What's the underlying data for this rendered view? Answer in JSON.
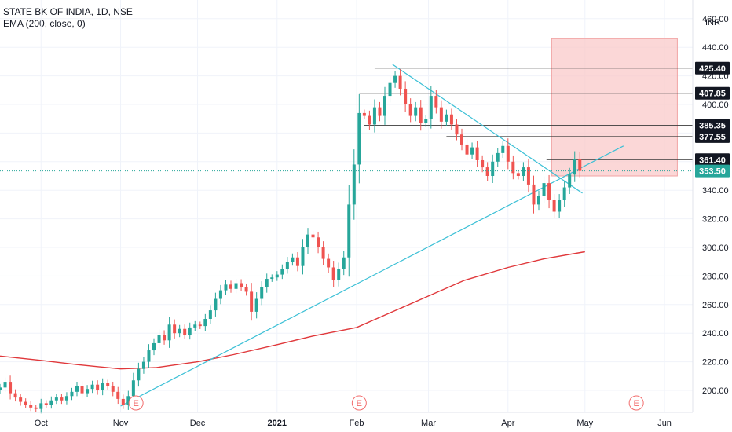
{
  "header": {
    "title": "STATE BK OF INDIA, 1D, NSE",
    "indicator": "EMA (200, close, 0)"
  },
  "currency": "INR",
  "colors": {
    "up": "#26a69a",
    "down": "#ef5350",
    "ema": "#e0383b",
    "trendline": "#3cc0d6",
    "hline": "#3a3a3a",
    "zone": "#f9c9c9",
    "price_line": "#26a69a",
    "event_badge": "#f26b6b"
  },
  "chart_data": {
    "type": "candlestick",
    "y_ticks": [
      200,
      220,
      240,
      260,
      280,
      300,
      320,
      340,
      360,
      380,
      400,
      420,
      440,
      460
    ],
    "y_tick_labels": [
      "200.00",
      "220.00",
      "240.00",
      "260.00",
      "280.00",
      "300.00",
      "320.00",
      "340.00",
      "360.00",
      "380.00",
      "400.00",
      "420.00",
      "440.00",
      "460.00"
    ],
    "ylim": [
      187,
      468
    ],
    "x_start": "2020-09-15",
    "x_end": "2021-06-12",
    "x_labels": [
      {
        "date": "2020-10-01",
        "text": "Oct",
        "bold": false
      },
      {
        "date": "2020-11-01",
        "text": "Nov",
        "bold": false
      },
      {
        "date": "2020-12-01",
        "text": "Dec",
        "bold": false
      },
      {
        "date": "2021-01-01",
        "text": "2021",
        "bold": true
      },
      {
        "date": "2021-02-01",
        "text": "Feb",
        "bold": false
      },
      {
        "date": "2021-03-01",
        "text": "Mar",
        "bold": false
      },
      {
        "date": "2021-04-01",
        "text": "Apr",
        "bold": false
      },
      {
        "date": "2021-05-01",
        "text": "May",
        "bold": false
      },
      {
        "date": "2021-06-01",
        "text": "Jun",
        "bold": false
      }
    ],
    "candles": [
      {
        "d": "2020-09-15",
        "c": 202
      },
      {
        "d": "2020-09-17",
        "c": 206
      },
      {
        "d": "2020-09-19",
        "c": 198
      },
      {
        "d": "2020-09-21",
        "c": 195
      },
      {
        "d": "2020-09-23",
        "c": 192
      },
      {
        "d": "2020-09-25",
        "c": 190
      },
      {
        "d": "2020-09-27",
        "c": 188
      },
      {
        "d": "2020-09-29",
        "c": 187
      },
      {
        "d": "2020-10-01",
        "c": 191
      },
      {
        "d": "2020-10-03",
        "c": 190
      },
      {
        "d": "2020-10-05",
        "c": 193
      },
      {
        "d": "2020-10-07",
        "c": 195
      },
      {
        "d": "2020-10-09",
        "c": 193
      },
      {
        "d": "2020-10-11",
        "c": 196
      },
      {
        "d": "2020-10-13",
        "c": 199
      },
      {
        "d": "2020-10-15",
        "c": 203
      },
      {
        "d": "2020-10-17",
        "c": 198
      },
      {
        "d": "2020-10-19",
        "c": 201
      },
      {
        "d": "2020-10-21",
        "c": 204
      },
      {
        "d": "2020-10-23",
        "c": 200
      },
      {
        "d": "2020-10-25",
        "c": 205
      },
      {
        "d": "2020-10-27",
        "c": 203
      },
      {
        "d": "2020-10-29",
        "c": 199
      },
      {
        "d": "2020-10-31",
        "c": 194
      },
      {
        "d": "2020-11-02",
        "c": 190
      },
      {
        "d": "2020-11-04",
        "c": 196
      },
      {
        "d": "2020-11-06",
        "c": 207
      },
      {
        "d": "2020-11-08",
        "c": 215
      },
      {
        "d": "2020-11-10",
        "c": 220
      },
      {
        "d": "2020-11-12",
        "c": 228
      },
      {
        "d": "2020-11-14",
        "c": 233
      },
      {
        "d": "2020-11-16",
        "c": 239
      },
      {
        "d": "2020-11-18",
        "c": 235
      },
      {
        "d": "2020-11-20",
        "c": 246
      },
      {
        "d": "2020-11-22",
        "c": 240
      },
      {
        "d": "2020-11-24",
        "c": 243
      },
      {
        "d": "2020-11-26",
        "c": 239
      },
      {
        "d": "2020-11-28",
        "c": 244
      },
      {
        "d": "2020-11-30",
        "c": 246
      },
      {
        "d": "2020-12-02",
        "c": 245
      },
      {
        "d": "2020-12-04",
        "c": 250
      },
      {
        "d": "2020-12-06",
        "c": 256
      },
      {
        "d": "2020-12-08",
        "c": 264
      },
      {
        "d": "2020-12-10",
        "c": 270
      },
      {
        "d": "2020-12-12",
        "c": 274
      },
      {
        "d": "2020-12-14",
        "c": 271
      },
      {
        "d": "2020-12-16",
        "c": 275
      },
      {
        "d": "2020-12-18",
        "c": 272
      },
      {
        "d": "2020-12-20",
        "c": 269
      },
      {
        "d": "2020-12-22",
        "c": 255
      },
      {
        "d": "2020-12-24",
        "c": 264
      },
      {
        "d": "2020-12-26",
        "c": 272
      },
      {
        "d": "2020-12-28",
        "c": 278
      },
      {
        "d": "2020-12-30",
        "c": 279
      },
      {
        "d": "2021-01-01",
        "c": 281
      },
      {
        "d": "2021-01-03",
        "c": 285
      },
      {
        "d": "2021-01-05",
        "c": 290
      },
      {
        "d": "2021-01-07",
        "c": 293
      },
      {
        "d": "2021-01-09",
        "c": 287
      },
      {
        "d": "2021-01-11",
        "c": 300
      },
      {
        "d": "2021-01-13",
        "c": 309
      },
      {
        "d": "2021-01-15",
        "c": 307
      },
      {
        "d": "2021-01-17",
        "c": 300
      },
      {
        "d": "2021-01-19",
        "c": 292
      },
      {
        "d": "2021-01-21",
        "c": 286
      },
      {
        "d": "2021-01-23",
        "c": 277
      },
      {
        "d": "2021-01-25",
        "c": 285
      },
      {
        "d": "2021-01-27",
        "c": 293
      },
      {
        "d": "2021-01-29",
        "c": 330
      },
      {
        "d": "2021-01-31",
        "c": 358
      },
      {
        "d": "2021-02-02",
        "c": 394
      },
      {
        "d": "2021-02-04",
        "c": 392
      },
      {
        "d": "2021-02-06",
        "c": 386
      },
      {
        "d": "2021-02-08",
        "c": 398
      },
      {
        "d": "2021-02-10",
        "c": 392
      },
      {
        "d": "2021-02-12",
        "c": 406
      },
      {
        "d": "2021-02-14",
        "c": 415
      },
      {
        "d": "2021-02-16",
        "c": 420
      },
      {
        "d": "2021-02-18",
        "c": 411
      },
      {
        "d": "2021-02-20",
        "c": 400
      },
      {
        "d": "2021-02-22",
        "c": 392
      },
      {
        "d": "2021-02-24",
        "c": 398
      },
      {
        "d": "2021-02-26",
        "c": 387
      },
      {
        "d": "2021-02-28",
        "c": 390
      },
      {
        "d": "2021-03-02",
        "c": 406
      },
      {
        "d": "2021-03-04",
        "c": 398
      },
      {
        "d": "2021-03-06",
        "c": 388
      },
      {
        "d": "2021-03-08",
        "c": 393
      },
      {
        "d": "2021-03-10",
        "c": 386
      },
      {
        "d": "2021-03-12",
        "c": 379
      },
      {
        "d": "2021-03-14",
        "c": 372
      },
      {
        "d": "2021-03-16",
        "c": 365
      },
      {
        "d": "2021-03-18",
        "c": 370
      },
      {
        "d": "2021-03-20",
        "c": 361
      },
      {
        "d": "2021-03-22",
        "c": 356
      },
      {
        "d": "2021-03-24",
        "c": 350
      },
      {
        "d": "2021-03-26",
        "c": 360
      },
      {
        "d": "2021-03-28",
        "c": 366
      },
      {
        "d": "2021-03-30",
        "c": 371
      },
      {
        "d": "2021-04-01",
        "c": 360
      },
      {
        "d": "2021-04-03",
        "c": 352
      },
      {
        "d": "2021-04-05",
        "c": 350
      },
      {
        "d": "2021-04-07",
        "c": 356
      },
      {
        "d": "2021-04-09",
        "c": 344
      },
      {
        "d": "2021-04-11",
        "c": 330
      },
      {
        "d": "2021-04-13",
        "c": 336
      },
      {
        "d": "2021-04-15",
        "c": 345
      },
      {
        "d": "2021-04-17",
        "c": 333
      },
      {
        "d": "2021-04-19",
        "c": 325
      },
      {
        "d": "2021-04-21",
        "c": 333
      },
      {
        "d": "2021-04-23",
        "c": 342
      },
      {
        "d": "2021-04-25",
        "c": 351
      },
      {
        "d": "2021-04-27",
        "c": 362
      },
      {
        "d": "2021-04-29",
        "c": 353.5
      }
    ],
    "ema200": [
      [
        "2020-09-15",
        224
      ],
      [
        "2020-10-01",
        221
      ],
      [
        "2020-10-15",
        218
      ],
      [
        "2020-11-01",
        215
      ],
      [
        "2020-11-15",
        216
      ],
      [
        "2020-12-01",
        220
      ],
      [
        "2020-12-15",
        225
      ],
      [
        "2021-01-01",
        232
      ],
      [
        "2021-01-15",
        238
      ],
      [
        "2021-02-01",
        244
      ],
      [
        "2021-02-15",
        255
      ],
      [
        "2021-03-01",
        266
      ],
      [
        "2021-03-15",
        277
      ],
      [
        "2021-04-01",
        286
      ],
      [
        "2021-04-15",
        292
      ],
      [
        "2021-05-01",
        297
      ]
    ],
    "trendlines": [
      {
        "from": [
          "2020-11-01",
          189
        ],
        "to": [
          "2021-05-16",
          371
        ]
      },
      {
        "from": [
          "2021-02-15",
          428
        ],
        "to": [
          "2021-04-30",
          338
        ]
      }
    ],
    "horizontal_levels": [
      {
        "value": 425.4,
        "label": "425.40",
        "from": "2021-02-08"
      },
      {
        "value": 407.85,
        "label": "407.85",
        "from": "2021-02-02"
      },
      {
        "value": 385.35,
        "label": "385.35",
        "from": "2021-02-04"
      },
      {
        "value": 377.55,
        "label": "377.55",
        "from": "2021-03-08"
      },
      {
        "value": 361.4,
        "label": "361.40",
        "from": "2021-04-16"
      }
    ],
    "zone": {
      "from": "2021-04-18",
      "to": "2021-06-06",
      "low": 350,
      "high": 446
    },
    "last_price": {
      "value": 353.5,
      "label": "353.50"
    },
    "events": [
      {
        "date": "2020-11-07",
        "label": "E"
      },
      {
        "date": "2021-02-02",
        "label": "E"
      },
      {
        "date": "2021-05-21",
        "label": "E"
      }
    ]
  }
}
